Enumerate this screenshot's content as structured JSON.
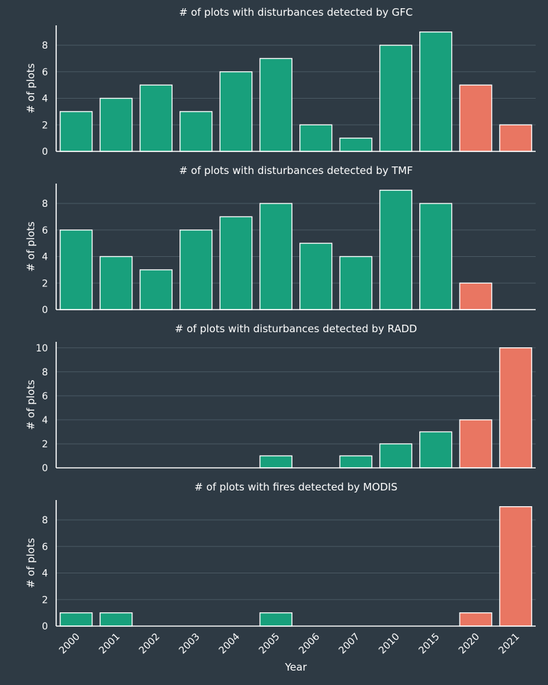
{
  "colors": {
    "background": "#2e3a44",
    "regular": "#18a07c",
    "highlight": "#e97662",
    "grid": "#4a5963",
    "text": "#ffffff"
  },
  "chart_data": [
    {
      "type": "bar",
      "title": "# of plots with disturbances detected by GFC",
      "ylabel": "# of plots",
      "xlabel": "",
      "categories": [
        "2000",
        "2001",
        "2002",
        "2003",
        "2004",
        "2005",
        "2006",
        "2007",
        "2010",
        "2015",
        "2020",
        "2021"
      ],
      "values": [
        3,
        4,
        5,
        3,
        6,
        7,
        2,
        1,
        8,
        9,
        5,
        2
      ],
      "highlight_categories": [
        "2020",
        "2021"
      ],
      "yticks": [
        0,
        2,
        4,
        6,
        8
      ],
      "ylim": [
        0,
        9.5
      ],
      "grid": true
    },
    {
      "type": "bar",
      "title": "# of plots with disturbances detected by TMF",
      "ylabel": "# of plots",
      "xlabel": "",
      "categories": [
        "2000",
        "2001",
        "2002",
        "2003",
        "2004",
        "2005",
        "2006",
        "2007",
        "2010",
        "2015",
        "2020",
        "2021"
      ],
      "values": [
        6,
        4,
        3,
        6,
        7,
        8,
        5,
        4,
        9,
        8,
        2,
        0
      ],
      "highlight_categories": [
        "2020",
        "2021"
      ],
      "yticks": [
        0,
        2,
        4,
        6,
        8
      ],
      "ylim": [
        0,
        9.5
      ],
      "grid": true
    },
    {
      "type": "bar",
      "title": "# of plots with disturbances detected by RADD",
      "ylabel": "# of plots",
      "xlabel": "",
      "categories": [
        "2000",
        "2001",
        "2002",
        "2003",
        "2004",
        "2005",
        "2006",
        "2007",
        "2010",
        "2015",
        "2020",
        "2021"
      ],
      "values": [
        0,
        0,
        0,
        0,
        0,
        1,
        0,
        1,
        2,
        3,
        4,
        10
      ],
      "highlight_categories": [
        "2020",
        "2021"
      ],
      "yticks": [
        0,
        2,
        4,
        6,
        8,
        10
      ],
      "ylim": [
        0,
        10.5
      ],
      "grid": true
    },
    {
      "type": "bar",
      "title": "# of plots with fires detected by MODIS",
      "ylabel": "# of plots",
      "xlabel": "Year",
      "categories": [
        "2000",
        "2001",
        "2002",
        "2003",
        "2004",
        "2005",
        "2006",
        "2007",
        "2010",
        "2015",
        "2020",
        "2021"
      ],
      "values": [
        1,
        1,
        0,
        0,
        0,
        1,
        0,
        0,
        0,
        0,
        1,
        9
      ],
      "highlight_categories": [
        "2020",
        "2021"
      ],
      "yticks": [
        0,
        2,
        4,
        6,
        8
      ],
      "ylim": [
        0,
        9.5
      ],
      "grid": true
    }
  ]
}
